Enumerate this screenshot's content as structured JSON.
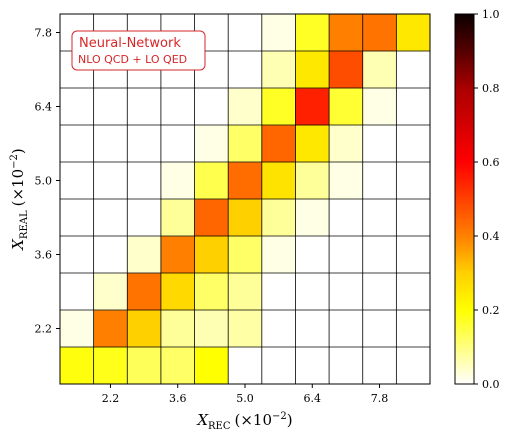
{
  "chart_data": {
    "type": "heatmap",
    "annotation": {
      "title": "Neural-Network",
      "subtitle": "NLO QCD + LO QED"
    },
    "xlabel": "X_REC (×10^-2)",
    "ylabel": "X_REAL (×10^-2)",
    "xlabel_parts": {
      "main": "X",
      "sub": "REC",
      "paren": "(×10",
      "exp": "−2",
      "close": ")"
    },
    "ylabel_parts": {
      "main": "X",
      "sub": "REAL",
      "paren": "(×10",
      "exp": "−2",
      "close": ")"
    },
    "x_ticks": [
      "2.2",
      "3.6",
      "5.0",
      "6.4",
      "7.8"
    ],
    "y_ticks": [
      "2.2",
      "3.6",
      "5.0",
      "6.4",
      "7.8"
    ],
    "x_bin_centers": [
      1.5,
      2.2,
      2.9,
      3.6,
      4.3,
      5.0,
      5.7,
      6.4,
      7.1,
      7.8,
      8.5
    ],
    "y_bin_centers": [
      1.5,
      2.2,
      2.9,
      3.6,
      4.3,
      5.0,
      5.7,
      6.4,
      7.1,
      7.8
    ],
    "colorbar": {
      "colormap": "hot_r",
      "range": [
        0.0,
        1.0
      ],
      "ticks": [
        "0.0",
        "0.2",
        "0.4",
        "0.6",
        "0.8",
        "1.0"
      ]
    },
    "values": [
      [
        0.19,
        0.18,
        0.13,
        0.12,
        0.2,
        0.0,
        0.0,
        0.0,
        0.0,
        0.0,
        0.0
      ],
      [
        0.02,
        0.4,
        0.3,
        0.08,
        0.06,
        0.07,
        0.0,
        0.0,
        0.0,
        0.0,
        0.0
      ],
      [
        0.0,
        0.04,
        0.42,
        0.28,
        0.12,
        0.08,
        0.0,
        0.0,
        0.0,
        0.0,
        0.0
      ],
      [
        0.0,
        0.0,
        0.04,
        0.4,
        0.3,
        0.12,
        0.02,
        0.0,
        0.0,
        0.0,
        0.0
      ],
      [
        0.0,
        0.0,
        0.0,
        0.08,
        0.44,
        0.3,
        0.08,
        0.02,
        0.0,
        0.0,
        0.0
      ],
      [
        0.0,
        0.0,
        0.0,
        0.02,
        0.14,
        0.43,
        0.26,
        0.08,
        0.02,
        0.0,
        0.0
      ],
      [
        0.0,
        0.0,
        0.0,
        0.0,
        0.02,
        0.12,
        0.44,
        0.25,
        0.04,
        0.0,
        0.0
      ],
      [
        0.0,
        0.0,
        0.0,
        0.0,
        0.0,
        0.04,
        0.17,
        0.55,
        0.16,
        0.02,
        0.0
      ],
      [
        0.0,
        0.0,
        0.0,
        0.0,
        0.0,
        0.0,
        0.06,
        0.25,
        0.48,
        0.06,
        0.0
      ],
      [
        0.0,
        0.0,
        0.0,
        0.0,
        0.0,
        0.0,
        0.02,
        0.17,
        0.4,
        0.42,
        0.25
      ]
    ]
  }
}
